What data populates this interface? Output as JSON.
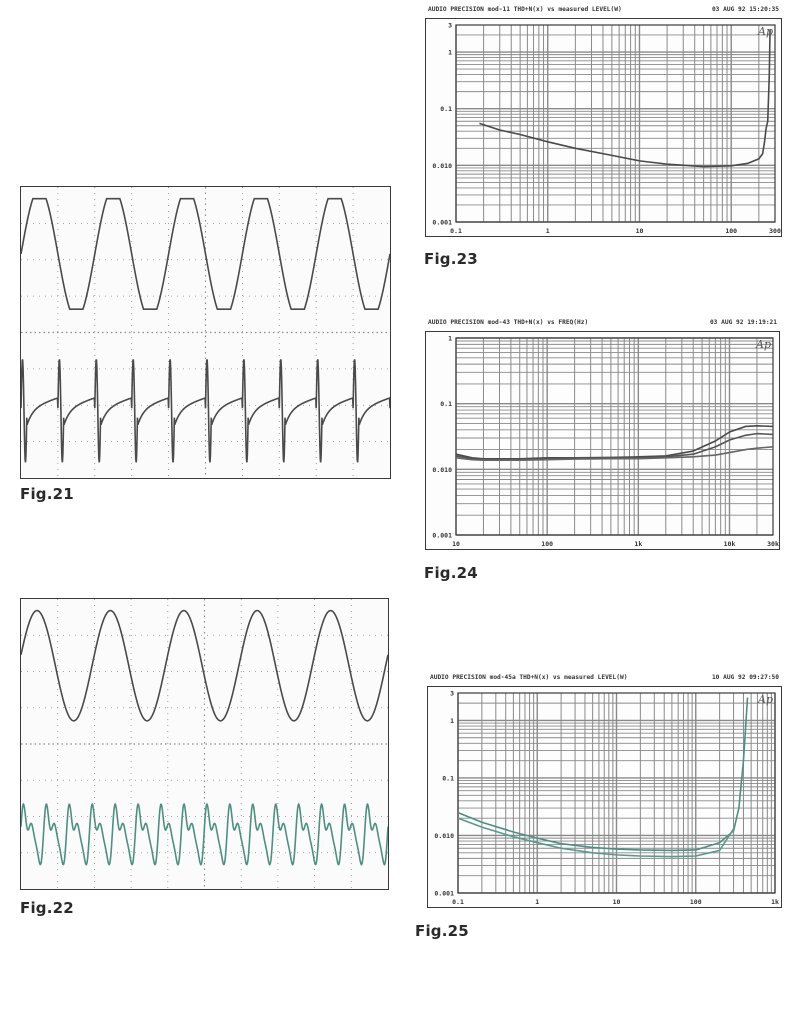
{
  "figures": [
    {
      "id": "fig21",
      "label": "Fig.21",
      "kind": "oscilloscope"
    },
    {
      "id": "fig22",
      "label": "Fig.22",
      "kind": "oscilloscope"
    },
    {
      "id": "fig23",
      "label": "Fig.23",
      "kind": "ap-plot"
    },
    {
      "id": "fig24",
      "label": "Fig.24",
      "kind": "ap-plot"
    },
    {
      "id": "fig25",
      "label": "Fig.25",
      "kind": "ap-plot"
    }
  ],
  "chart_data": [
    {
      "type": "line",
      "id": "fig21",
      "title": "",
      "grid": true,
      "series": [
        {
          "waveform": "clipped-sine",
          "cycles": 5,
          "amplitude": 0.82,
          "clip_level": 0.82
        },
        {
          "waveform": "distortion-spikes",
          "cycles": 10,
          "amplitude": 0.9
        }
      ]
    },
    {
      "type": "line",
      "id": "fig22",
      "title": "",
      "grid": true,
      "series": [
        {
          "waveform": "sine",
          "cycles": 5,
          "amplitude": 0.85
        },
        {
          "waveform": "harmonic-residual",
          "cycles": 16,
          "amplitude": 0.6
        }
      ]
    },
    {
      "type": "line",
      "id": "fig23",
      "header": "AUDIO PRECISION mod-11 THD+N(x) vs measured LEVEL(W)",
      "date": "03 AUG 92 15:20:35",
      "logo": "Ap",
      "x_scale": "log",
      "y_scale": "log",
      "xlim": [
        0.1,
        300
      ],
      "ylim": [
        0.001,
        3
      ],
      "x_ticks": [
        "0.1",
        "1",
        "10",
        "100",
        "300"
      ],
      "y_ticks": [
        "3",
        "1",
        "0.1",
        "0.010",
        "0.001"
      ],
      "grid": true,
      "series": [
        {
          "x": [
            0.18,
            0.3,
            0.5,
            1,
            2,
            5,
            10,
            20,
            50,
            100,
            150,
            200,
            220,
            230,
            240,
            250,
            260,
            265
          ],
          "y": [
            0.055,
            0.042,
            0.035,
            0.026,
            0.02,
            0.015,
            0.012,
            0.0105,
            0.0095,
            0.0098,
            0.0108,
            0.013,
            0.016,
            0.025,
            0.045,
            0.06,
            0.4,
            2.5
          ]
        }
      ]
    },
    {
      "type": "line",
      "id": "fig24",
      "header": "AUDIO PRECISION mod-43 THD+N(x) vs FREQ(Hz)",
      "date": "03 AUG 92 19:19:21",
      "logo": "Ap",
      "x_scale": "log",
      "y_scale": "log",
      "xlim": [
        10,
        30000
      ],
      "ylim": [
        0.001,
        1
      ],
      "x_ticks": [
        "10",
        "100",
        "1k",
        "10k",
        "30k"
      ],
      "y_ticks": [
        "1",
        "0.1",
        "0.010",
        "0.001"
      ],
      "grid": true,
      "series": [
        {
          "x": [
            10,
            15,
            20,
            50,
            100,
            200,
            500,
            1000,
            2000,
            4000,
            7000,
            10000,
            15000,
            20000,
            30000
          ],
          "y": [
            0.017,
            0.015,
            0.0145,
            0.0145,
            0.015,
            0.015,
            0.0152,
            0.0155,
            0.016,
            0.019,
            0.027,
            0.037,
            0.045,
            0.046,
            0.045
          ]
        },
        {
          "x": [
            10,
            15,
            20,
            50,
            100,
            200,
            500,
            1000,
            2000,
            4000,
            7000,
            10000,
            15000,
            20000,
            30000
          ],
          "y": [
            0.016,
            0.0145,
            0.014,
            0.014,
            0.0145,
            0.0148,
            0.015,
            0.015,
            0.0155,
            0.017,
            0.022,
            0.028,
            0.033,
            0.035,
            0.034
          ]
        },
        {
          "x": [
            10,
            15,
            20,
            50,
            100,
            200,
            500,
            1000,
            2000,
            4000,
            7000,
            10000,
            15000,
            20000,
            30000
          ],
          "y": [
            0.015,
            0.014,
            0.0138,
            0.0138,
            0.014,
            0.0143,
            0.0145,
            0.0145,
            0.015,
            0.0155,
            0.0165,
            0.018,
            0.02,
            0.021,
            0.022
          ]
        }
      ]
    },
    {
      "type": "line",
      "id": "fig25",
      "header": "AUDIO PRECISION mod-45a THD+N(x) vs measured LEVEL(W)",
      "date": "10 AUG 92 09:27:50",
      "logo": "Ap",
      "x_scale": "log",
      "y_scale": "log",
      "xlim": [
        0.1,
        1000
      ],
      "ylim": [
        0.001,
        3
      ],
      "x_ticks": [
        "0.1",
        "1",
        "10",
        "100",
        "1k"
      ],
      "y_ticks": [
        "3",
        "1",
        "0.1",
        "0.010",
        "0.001"
      ],
      "grid": true,
      "series": [
        {
          "x": [
            0.1,
            0.2,
            0.5,
            1,
            2,
            5,
            10,
            20,
            50,
            100,
            200,
            300,
            350,
            400,
            450
          ],
          "y": [
            0.025,
            0.017,
            0.0115,
            0.009,
            0.0072,
            0.0062,
            0.0058,
            0.0056,
            0.0055,
            0.0056,
            0.0075,
            0.012,
            0.03,
            0.2,
            2.5
          ]
        },
        {
          "x": [
            0.1,
            0.2,
            0.5,
            1,
            2,
            5,
            10,
            20,
            50,
            100,
            200,
            300
          ],
          "y": [
            0.02,
            0.014,
            0.0095,
            0.0075,
            0.006,
            0.005,
            0.0046,
            0.0044,
            0.0043,
            0.0044,
            0.0055,
            0.013
          ]
        }
      ]
    }
  ],
  "colors": {
    "trace": "#4a4a4a",
    "trace_teal": "#4f8f82",
    "grid": "#8a8a8a",
    "frame": "#3a3a3a"
  }
}
